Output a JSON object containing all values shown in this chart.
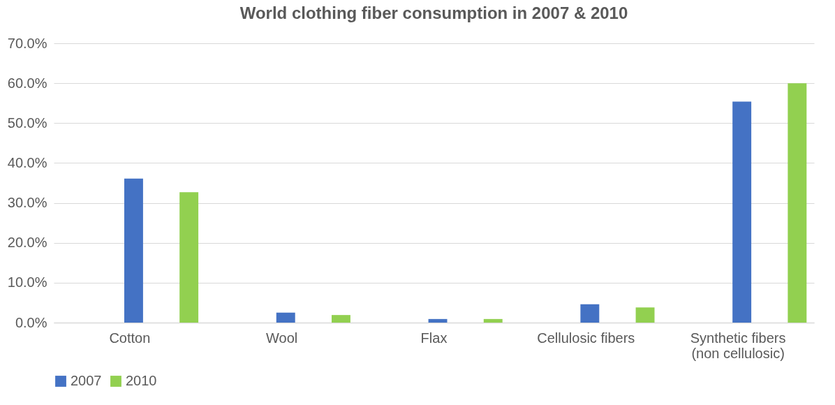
{
  "chart_data": {
    "type": "bar",
    "title": "World clothing fiber consumption in 2007 & 2010",
    "categories": [
      "Cotton",
      "Wool",
      "Flax",
      "Cellulosic fibers",
      "Synthetic fibers (non cellulosic)"
    ],
    "series": [
      {
        "name": "2007",
        "color": "#4472c4",
        "values": [
          36.1,
          2.5,
          0.9,
          4.6,
          55.4
        ]
      },
      {
        "name": "2010",
        "color": "#92d050",
        "values": [
          32.7,
          1.9,
          0.9,
          3.8,
          60.0
        ]
      }
    ],
    "ylim": [
      0,
      70
    ],
    "yticks": [
      {
        "value": 0,
        "label": "0.0%"
      },
      {
        "value": 10,
        "label": "10.0%"
      },
      {
        "value": 20,
        "label": "20.0%"
      },
      {
        "value": 30,
        "label": "30.0%"
      },
      {
        "value": 40,
        "label": "40.0%"
      },
      {
        "value": 50,
        "label": "50.0%"
      },
      {
        "value": 60,
        "label": "60.0%"
      },
      {
        "value": 70,
        "label": "70.0%"
      }
    ],
    "grid": "y",
    "legend": "bottom"
  }
}
